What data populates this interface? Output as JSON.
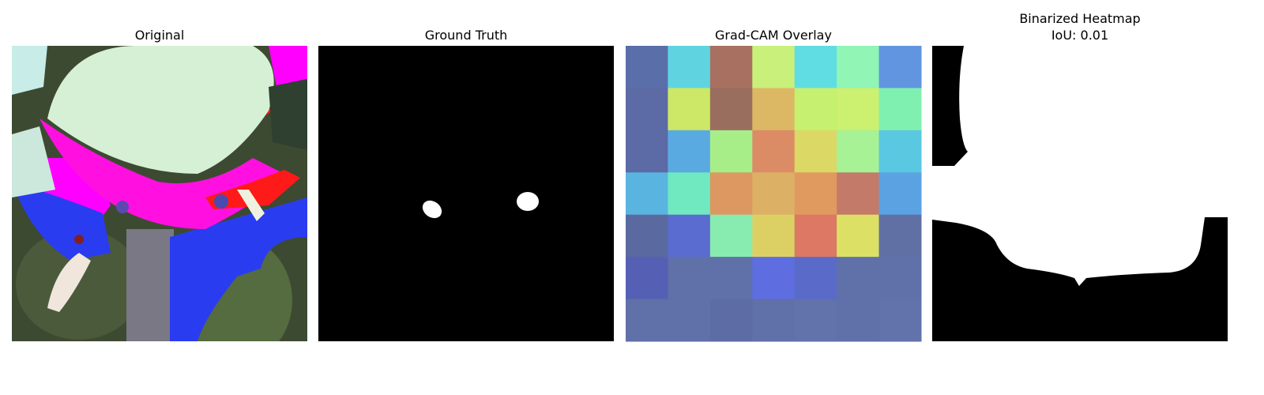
{
  "panels": [
    {
      "title": "Original"
    },
    {
      "title": "Ground Truth"
    },
    {
      "title": "Grad-CAM Overlay"
    },
    {
      "title": "Binarized Heatmap",
      "subtitle": "IoU: 0.01"
    }
  ]
}
